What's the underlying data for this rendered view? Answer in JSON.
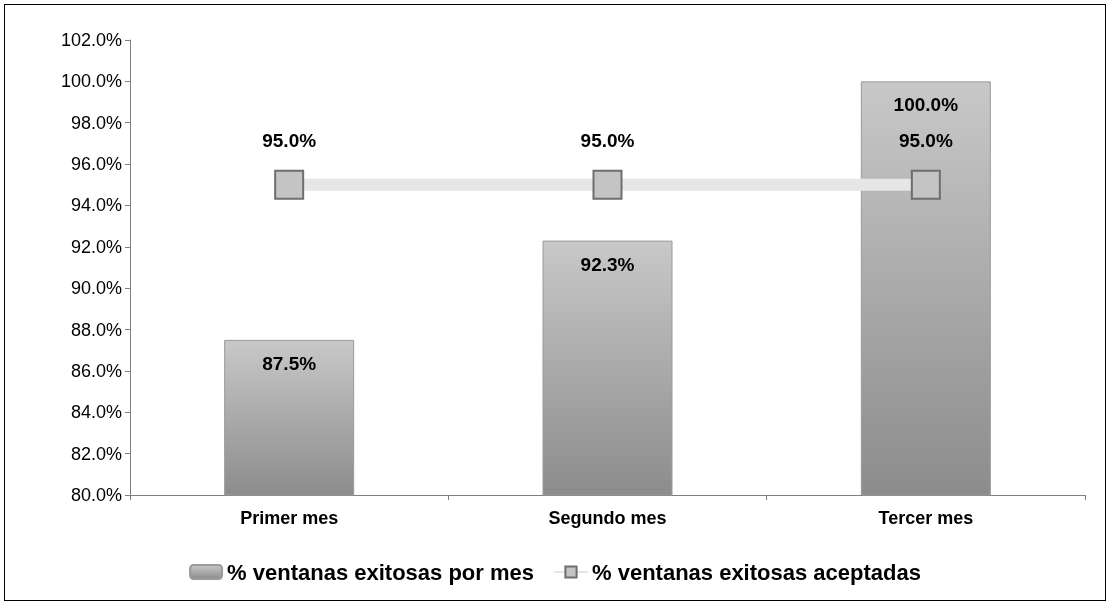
{
  "chart_data": {
    "type": "bar",
    "categories": [
      "Primer mes",
      "Segundo mes",
      "Tercer mes"
    ],
    "series": [
      {
        "name": "% ventanas exitosas por mes",
        "type": "bar",
        "color": "#8c8c8c",
        "values": [
          87.5,
          92.3,
          100.0
        ],
        "value_labels": [
          "87.5%",
          "92.3%",
          "100.0%"
        ]
      },
      {
        "name": "% ventanas exitosas aceptadas",
        "type": "line",
        "color": "#e6e6e6",
        "values": [
          95.0,
          95.0,
          95.0
        ],
        "value_labels": [
          "95.0%",
          "95.0%",
          "95.0%"
        ]
      }
    ],
    "ylim": [
      80,
      102
    ],
    "yticks": [
      {
        "value": 80,
        "label": "80.0%"
      },
      {
        "value": 82,
        "label": "82.0%"
      },
      {
        "value": 84,
        "label": "84.0%"
      },
      {
        "value": 86,
        "label": "86.0%"
      },
      {
        "value": 88,
        "label": "88.0%"
      },
      {
        "value": 90,
        "label": "90.0%"
      },
      {
        "value": 92,
        "label": "92.0%"
      },
      {
        "value": 94,
        "label": "94.0%"
      },
      {
        "value": 96,
        "label": "96.0%"
      },
      {
        "value": 98,
        "label": "98.0%"
      },
      {
        "value": 100,
        "label": "100.0%"
      },
      {
        "value": 102,
        "label": "102.0%"
      }
    ],
    "grid": false,
    "legend": "bottom",
    "marker": "square",
    "line_style": "solid"
  }
}
